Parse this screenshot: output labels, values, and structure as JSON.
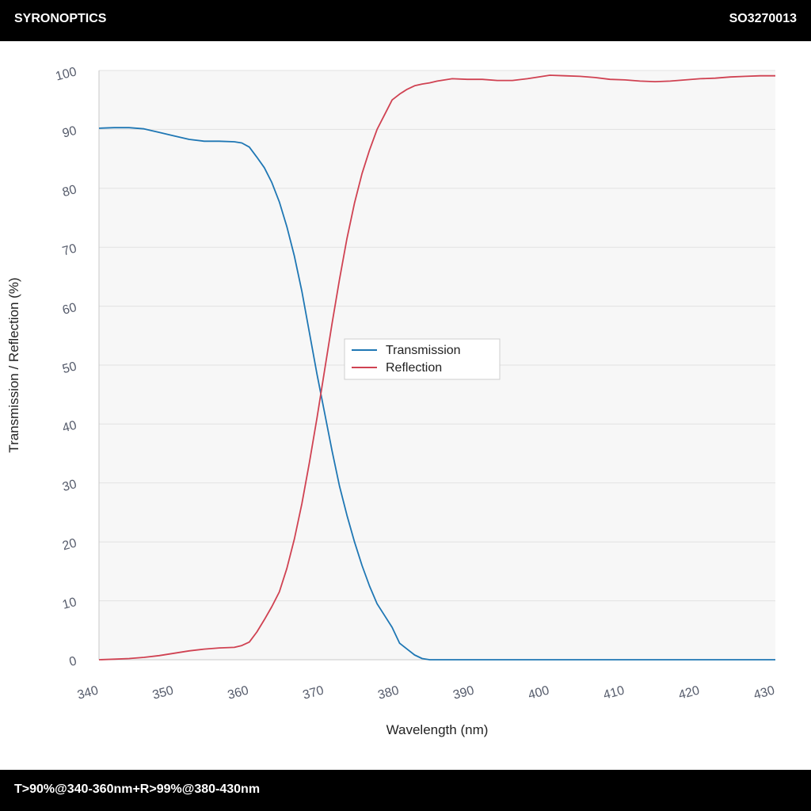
{
  "header": {
    "brand": "SYRONOPTICS",
    "code": "SO3270013"
  },
  "footer": {
    "spec": "T>90%@340-360nm+R>99%@380-430nm"
  },
  "chart_data": {
    "type": "line",
    "xlabel": "Wavelength (nm)",
    "ylabel": "Transmission / Reflection (%)",
    "xlim": [
      340,
      430
    ],
    "ylim": [
      0,
      100
    ],
    "xticks": [
      340,
      350,
      360,
      370,
      380,
      390,
      400,
      410,
      420,
      430
    ],
    "yticks": [
      0,
      10,
      20,
      30,
      40,
      50,
      60,
      70,
      80,
      90,
      100
    ],
    "grid": true,
    "legend_position": "center",
    "colors": {
      "Transmission": "#1f77b4",
      "Reflection": "#d04252"
    },
    "series": [
      {
        "name": "Transmission",
        "x": [
          340,
          342,
          344,
          346,
          348,
          350,
          352,
          354,
          356,
          358,
          359,
          360,
          361,
          362,
          363,
          364,
          365,
          366,
          367,
          368,
          369,
          370,
          371,
          372,
          373,
          374,
          375,
          376,
          377,
          378,
          379,
          380,
          381,
          382,
          383,
          384,
          385,
          390,
          400,
          410,
          420,
          430
        ],
        "values": [
          90.2,
          90.3,
          90.3,
          90.1,
          89.5,
          88.9,
          88.3,
          88.0,
          88.0,
          87.9,
          87.7,
          87.0,
          85.3,
          83.5,
          81.0,
          77.7,
          73.5,
          68.5,
          62.5,
          55.5,
          48.5,
          42.0,
          35.5,
          29.5,
          24.5,
          20.0,
          16.0,
          12.5,
          9.5,
          7.5,
          5.5,
          2.8,
          1.8,
          0.8,
          0.2,
          0.0,
          0.0,
          0.0,
          0.0,
          0.0,
          0.0,
          0.0
        ]
      },
      {
        "name": "Reflection",
        "x": [
          340,
          342,
          344,
          346,
          348,
          350,
          352,
          354,
          355,
          356,
          358,
          359,
          360,
          361,
          362,
          363,
          364,
          365,
          366,
          367,
          368,
          369,
          370,
          371,
          372,
          373,
          374,
          375,
          376,
          377,
          378,
          379,
          380,
          381,
          382,
          383,
          384,
          385,
          387,
          389,
          391,
          393,
          395,
          397,
          400,
          402,
          404,
          406,
          408,
          410,
          412,
          414,
          416,
          418,
          420,
          422,
          424,
          426,
          428,
          430
        ],
        "values": [
          0.0,
          0.1,
          0.2,
          0.4,
          0.7,
          1.1,
          1.5,
          1.8,
          1.9,
          2.0,
          2.1,
          2.4,
          3.0,
          4.7,
          6.8,
          9.0,
          11.5,
          15.5,
          20.5,
          26.5,
          33.5,
          41.0,
          49.0,
          57.0,
          64.5,
          71.5,
          77.5,
          82.5,
          86.5,
          90.0,
          92.5,
          95.0,
          96.0,
          96.8,
          97.4,
          97.7,
          97.9,
          98.2,
          98.6,
          98.5,
          98.5,
          98.3,
          98.3,
          98.6,
          99.2,
          99.1,
          99.0,
          98.8,
          98.5,
          98.4,
          98.2,
          98.1,
          98.2,
          98.4,
          98.6,
          98.7,
          98.9,
          99.0,
          99.1,
          99.1
        ]
      }
    ]
  }
}
